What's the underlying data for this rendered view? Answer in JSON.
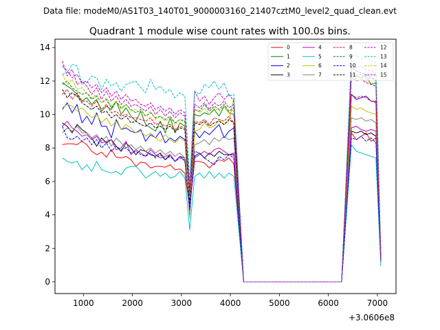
{
  "figure": {
    "suptitle": "Data file: modeM0/AS1T03_140T01_9000003160_21407cztM0_level2_quad_clean.evt",
    "offset_label": "+3.0606e8"
  },
  "chart_data": {
    "type": "line",
    "title": "Quadrant 1 module wise count rates with 100.0s bins.",
    "xlabel": "",
    "ylabel": "",
    "x_offset": 306060000,
    "x_offset_text": "+3.0606e8",
    "xlim": [
      420,
      7380
    ],
    "ylim": [
      -0.7,
      14.5
    ],
    "xticks": [
      1000,
      2000,
      3000,
      4000,
      5000,
      6000,
      7000
    ],
    "yticks": [
      0,
      2,
      4,
      6,
      8,
      10,
      12,
      14
    ],
    "grid": false,
    "legend": {
      "placement": "top-right",
      "columns": 4
    },
    "x": [
      570,
      670,
      770,
      870,
      970,
      1070,
      1170,
      1270,
      1370,
      1470,
      1570,
      1670,
      1770,
      1870,
      1970,
      2070,
      2170,
      2270,
      2370,
      2470,
      2570,
      2670,
      2770,
      2870,
      2970,
      3070,
      3170,
      3270,
      3370,
      3470,
      3570,
      3670,
      3770,
      3870,
      3970,
      4070,
      4270,
      6270,
      6470,
      6570,
      6670,
      6770,
      6870,
      6970,
      7070
    ],
    "series": [
      {
        "name": "0",
        "color": "#ff0000",
        "dash": "solid",
        "values": [
          8.2,
          8.25,
          8.25,
          8.2,
          8.4,
          8.2,
          7.8,
          7.6,
          7.75,
          7.45,
          7.9,
          7.45,
          7.4,
          7.5,
          7.3,
          6.9,
          7.15,
          7.1,
          6.8,
          6.9,
          6.9,
          6.85,
          7.0,
          6.7,
          6.75,
          6.5,
          4.4,
          7.2,
          7.2,
          7.1,
          6.8,
          7.1,
          7.3,
          7.2,
          7.4,
          7.05,
          0,
          0,
          8.9,
          8.5,
          8.7,
          8.9,
          8.4,
          8.6,
          1.3
        ]
      },
      {
        "name": "1",
        "color": "#008000",
        "dash": "solid",
        "values": [
          11.9,
          11.7,
          11.5,
          11.2,
          10.8,
          11.0,
          10.6,
          10.9,
          10.2,
          10.5,
          10.3,
          10.8,
          10.0,
          10.4,
          9.9,
          9.6,
          10.2,
          9.4,
          9.2,
          9.0,
          9.6,
          8.9,
          9.8,
          8.9,
          9.5,
          9.3,
          5.4,
          10.0,
          9.9,
          10.1,
          10.0,
          10.3,
          9.9,
          10.5,
          10.1,
          10.0,
          0,
          0,
          12.4,
          12.3,
          12.2,
          12.3,
          11.8,
          11.9,
          1.6
        ]
      },
      {
        "name": "2",
        "color": "#0000ff",
        "dash": "solid",
        "values": [
          10.3,
          10.7,
          10.1,
          10.6,
          9.5,
          9.9,
          9.4,
          10.1,
          9.3,
          9.3,
          8.6,
          9.7,
          9.1,
          9.2,
          9.0,
          8.9,
          9.1,
          8.4,
          8.8,
          8.6,
          9.0,
          8.3,
          8.6,
          8.4,
          8.7,
          8.5,
          5.1,
          9.0,
          8.6,
          9.0,
          8.8,
          9.1,
          9.4,
          8.6,
          9.0,
          9.2,
          0,
          0,
          11.2,
          10.9,
          11.0,
          11.1,
          10.8,
          10.8,
          1.5
        ]
      },
      {
        "name": "3",
        "color": "#000000",
        "dash": "solid",
        "values": [
          9.5,
          9.3,
          8.9,
          9.4,
          9.1,
          8.9,
          8.6,
          8.1,
          8.6,
          8.3,
          8.5,
          8.1,
          7.8,
          8.3,
          8.0,
          7.6,
          7.9,
          7.8,
          7.6,
          7.5,
          7.7,
          7.3,
          7.6,
          7.2,
          7.5,
          7.4,
          4.6,
          7.5,
          7.7,
          7.4,
          7.7,
          7.5,
          7.8,
          7.6,
          7.6,
          7.6,
          0,
          0,
          9.0,
          8.9,
          9.0,
          8.8,
          8.9,
          8.7,
          1.4
        ]
      },
      {
        "name": "4",
        "color": "#bf00bf",
        "dash": "solid",
        "values": [
          9.3,
          9.6,
          9.2,
          9.0,
          8.7,
          8.8,
          8.5,
          8.7,
          8.3,
          8.4,
          8.5,
          7.9,
          8.0,
          8.4,
          7.6,
          7.9,
          7.7,
          7.5,
          7.9,
          7.6,
          7.4,
          7.5,
          7.6,
          7.2,
          7.5,
          7.2,
          4.4,
          7.4,
          7.6,
          7.8,
          7.6,
          7.9,
          8.0,
          7.8,
          7.6,
          7.7,
          0,
          0,
          9.2,
          9.3,
          9.1,
          9.0,
          9.1,
          9.0,
          1.2
        ]
      },
      {
        "name": "5",
        "color": "#00bfbf",
        "dash": "solid",
        "values": [
          7.4,
          7.2,
          7.1,
          7.2,
          6.7,
          7.0,
          6.6,
          7.2,
          6.7,
          6.6,
          6.5,
          6.6,
          6.4,
          6.8,
          6.9,
          6.9,
          6.6,
          6.2,
          6.4,
          6.6,
          6.3,
          6.5,
          6.2,
          6.3,
          6.6,
          6.2,
          3.1,
          6.3,
          6.5,
          6.2,
          6.6,
          6.2,
          6.5,
          6.2,
          6.5,
          6.3,
          0,
          0,
          8.2,
          7.8,
          7.7,
          7.6,
          7.5,
          7.4,
          0.95
        ]
      },
      {
        "name": "6",
        "color": "#bfbf00",
        "dash": "solid",
        "values": [
          10.4,
          10.6,
          10.5,
          10.2,
          10.4,
          10.1,
          9.8,
          10.0,
          9.5,
          9.8,
          9.3,
          9.6,
          9.1,
          9.4,
          9.2,
          8.9,
          9.0,
          8.7,
          8.9,
          8.6,
          8.4,
          8.8,
          8.5,
          8.3,
          8.6,
          8.4,
          3.8,
          9.0,
          9.1,
          9.5,
          9.2,
          9.3,
          9.7,
          9.4,
          9.6,
          11.0,
          0,
          0,
          10.5,
          10.3,
          10.4,
          10.2,
          10.1,
          10.0,
          1.3
        ]
      },
      {
        "name": "7",
        "color": "#808080",
        "dash": "solid",
        "values": [
          8.9,
          9.2,
          9.0,
          9.3,
          8.9,
          8.9,
          8.6,
          8.8,
          8.4,
          8.7,
          8.1,
          8.6,
          8.3,
          8.0,
          8.2,
          7.9,
          8.1,
          7.8,
          8.0,
          7.7,
          7.9,
          7.6,
          7.8,
          7.5,
          7.7,
          7.4,
          4.0,
          8.2,
          8.3,
          8.5,
          8.2,
          8.6,
          8.4,
          8.7,
          8.5,
          8.6,
          0,
          0,
          9.8,
          9.7,
          9.8,
          9.6,
          9.7,
          9.5,
          1.2
        ]
      },
      {
        "name": "8",
        "color": "#ff0000",
        "dash": "dashed",
        "values": [
          11.2,
          11.5,
          10.9,
          11.3,
          10.8,
          10.8,
          10.5,
          10.8,
          10.3,
          10.6,
          10.1,
          10.2,
          9.9,
          10.0,
          9.8,
          9.8,
          9.7,
          9.6,
          9.8,
          9.4,
          9.5,
          9.3,
          9.4,
          9.1,
          9.3,
          9.2,
          4.8,
          9.6,
          9.5,
          9.7,
          9.4,
          9.8,
          9.7,
          9.6,
          9.9,
          9.5,
          0,
          0,
          11.2,
          11.0,
          11.1,
          11.0,
          10.8,
          10.7,
          1.4
        ]
      },
      {
        "name": "9",
        "color": "#008000",
        "dash": "dashed",
        "values": [
          11.8,
          12.0,
          11.6,
          11.4,
          11.2,
          11.3,
          10.9,
          11.1,
          10.7,
          10.9,
          10.4,
          10.8,
          10.4,
          10.6,
          10.3,
          10.1,
          10.3,
          9.9,
          10.1,
          9.8,
          9.9,
          9.7,
          9.9,
          9.5,
          9.7,
          9.6,
          5.2,
          10.3,
          10.2,
          10.6,
          10.2,
          10.5,
          10.3,
          10.6,
          10.2,
          10.4,
          0,
          0,
          12.5,
          12.3,
          12.4,
          12.1,
          12.2,
          12.0,
          1.6
        ]
      },
      {
        "name": "10",
        "color": "#0000ff",
        "dash": "dashed",
        "values": [
          9.3,
          8.6,
          8.5,
          8.7,
          8.4,
          8.6,
          8.2,
          8.5,
          8.0,
          8.3,
          7.8,
          8.1,
          7.9,
          8.0,
          7.7,
          7.8,
          7.6,
          7.5,
          7.7,
          7.4,
          7.6,
          7.3,
          7.5,
          7.2,
          7.4,
          7.3,
          4.3,
          7.8,
          7.7,
          7.4,
          7.2,
          7.0,
          7.5,
          7.3,
          7.6,
          7.4,
          0,
          0,
          8.6,
          8.5,
          8.7,
          8.4,
          8.6,
          8.3,
          1.3
        ]
      },
      {
        "name": "11",
        "color": "#000000",
        "dash": "dashed",
        "values": [
          11.5,
          11.0,
          11.3,
          11.1,
          10.7,
          10.5,
          10.3,
          10.5,
          10.1,
          10.2,
          9.8,
          10.0,
          9.7,
          9.9,
          9.5,
          9.6,
          9.4,
          9.3,
          9.5,
          9.2,
          9.3,
          9.1,
          9.3,
          9.0,
          9.2,
          9.1,
          4.9,
          9.5,
          9.4,
          9.6,
          9.3,
          9.5,
          9.6,
          9.4,
          9.7,
          9.5,
          0,
          0,
          12.8,
          12.6,
          12.5,
          12.4,
          12.2,
          12.1,
          1.5
        ]
      },
      {
        "name": "12",
        "color": "#bf00bf",
        "dash": "dashed",
        "values": [
          13.2,
          12.3,
          12.7,
          11.8,
          12.0,
          11.7,
          11.2,
          11.6,
          10.9,
          11.4,
          10.8,
          11.1,
          10.6,
          10.9,
          10.5,
          10.6,
          10.4,
          10.2,
          10.5,
          10.0,
          10.3,
          9.9,
          10.2,
          9.8,
          10.1,
          9.9,
          5.5,
          11.4,
          10.8,
          11.1,
          10.6,
          11.0,
          11.3,
          10.9,
          11.2,
          10.8,
          0,
          0,
          13.0,
          12.8,
          12.9,
          12.7,
          12.6,
          12.5,
          1.6
        ]
      },
      {
        "name": "13",
        "color": "#00bfbf",
        "dash": "dashed",
        "values": [
          12.4,
          12.5,
          13.0,
          12.9,
          11.8,
          11.9,
          12.3,
          12.2,
          11.5,
          12.1,
          11.7,
          11.9,
          11.4,
          11.8,
          11.9,
          12.0,
          11.6,
          11.3,
          12.1,
          11.5,
          11.7,
          11.3,
          11.5,
          11.0,
          11.3,
          11.1,
          6.0,
          11.4,
          11.2,
          11.8,
          11.6,
          12.0,
          11.5,
          11.9,
          11.1,
          11.2,
          0,
          0,
          13.6,
          13.5,
          13.3,
          13.4,
          13.2,
          13.1,
          1.7
        ]
      },
      {
        "name": "14",
        "color": "#bfbf00",
        "dash": "dashed",
        "values": [
          12.4,
          11.8,
          12.1,
          11.5,
          11.6,
          11.3,
          11.0,
          11.2,
          10.7,
          11.0,
          10.5,
          10.8,
          10.3,
          10.6,
          10.2,
          10.3,
          10.1,
          9.9,
          10.2,
          9.7,
          9.9,
          9.6,
          9.8,
          9.4,
          9.7,
          9.5,
          5.0,
          10.3,
          10.1,
          10.4,
          10.0,
          10.4,
          10.2,
          10.5,
          10.1,
          10.3,
          0,
          0,
          12.3,
          12.1,
          12.2,
          12.0,
          11.9,
          11.8,
          1.5
        ]
      },
      {
        "name": "15",
        "color": "#bf00bf",
        "dash": "dashed",
        "values": [
          12.9,
          12.6,
          12.2,
          12.4,
          11.9,
          12.0,
          11.6,
          11.8,
          11.3,
          11.6,
          11.1,
          11.4,
          10.9,
          11.2,
          10.8,
          10.9,
          10.6,
          10.5,
          10.7,
          10.3,
          10.5,
          10.2,
          10.4,
          10.0,
          10.3,
          10.1,
          5.3,
          10.6,
          10.4,
          10.7,
          10.3,
          10.7,
          10.5,
          10.8,
          10.4,
          10.6,
          0,
          0,
          12.2,
          12.0,
          12.1,
          11.9,
          11.8,
          11.7,
          1.5
        ]
      }
    ]
  }
}
